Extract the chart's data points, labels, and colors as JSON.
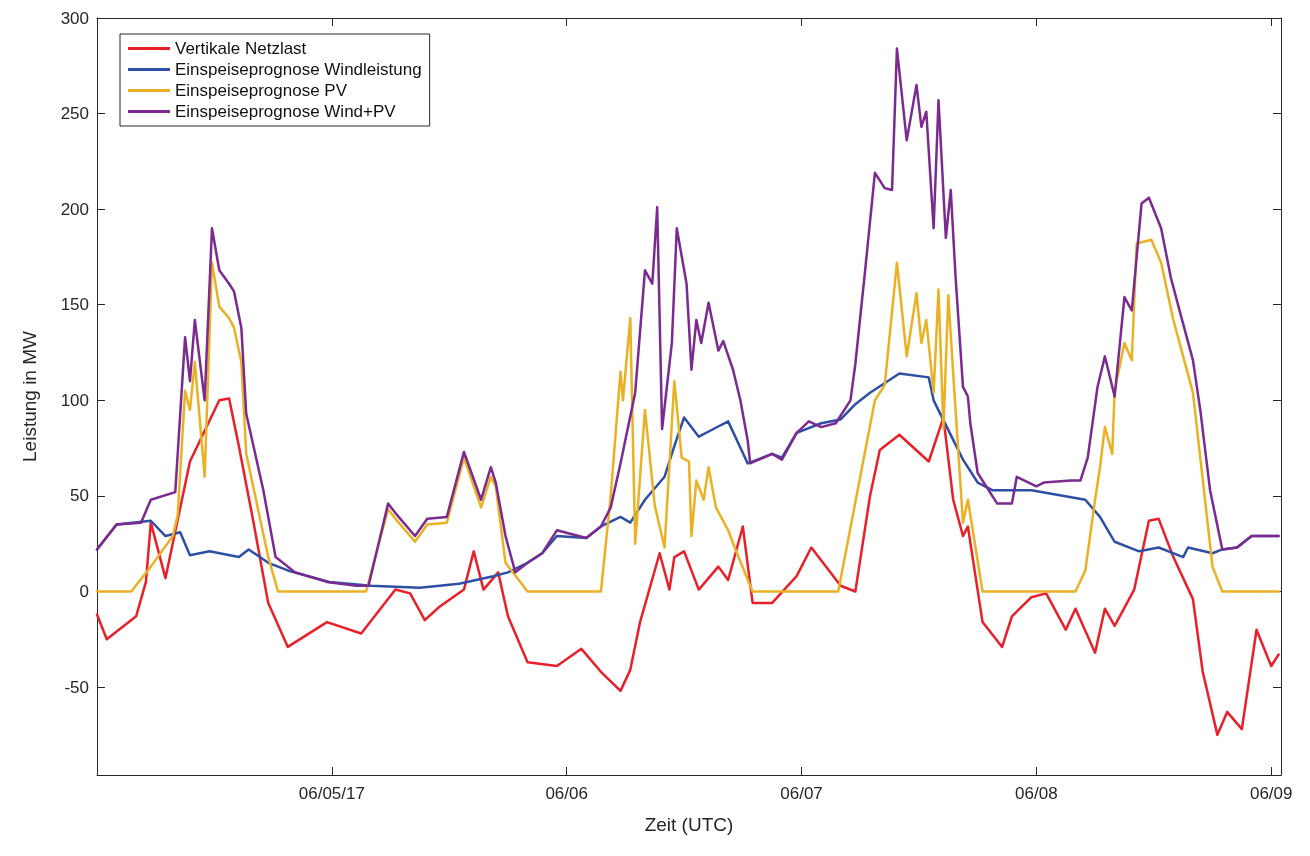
{
  "chart_data": {
    "type": "line",
    "xlabel": "Zeit (UTC)",
    "ylabel": "Leistung in MW",
    "xlim": [
      "--06-04T00:00",
      "--06-09T01:00"
    ],
    "xticks": [
      {
        "value": "--06-05",
        "label": "06/05/17"
      },
      {
        "value": "--06-06",
        "label": "06/06"
      },
      {
        "value": "--06-07",
        "label": "06/07"
      },
      {
        "value": "--06-08",
        "label": "06/08"
      },
      {
        "value": "--06-09",
        "label": "06/09"
      }
    ],
    "ylim": [
      -96,
      300
    ],
    "yticks": [
      -50,
      0,
      50,
      100,
      150,
      200,
      250,
      300
    ],
    "grid": false,
    "legend": "top left",
    "marker": "none",
    "line_style": "solid",
    "series": [
      {
        "name": "Vertikale Netzlast",
        "color": "#e8202a",
        "x": [
          "--06-04T00:00",
          "--06-04T01:00",
          "--06-04T04:00",
          "--06-04T05:00",
          "--06-04T05:30",
          "--06-04T07:00",
          "--06-04T09:30",
          "--06-04T12:30",
          "--06-04T13:30",
          "--06-04T14:30",
          "--06-04T16:00",
          "--06-04T17:30",
          "--06-04T19:30",
          "--06-04T23:30",
          "--06-05T03:00",
          "--06-05T06:30",
          "--06-05T08:00",
          "--06-05T09:30",
          "--06-05T11:00",
          "--06-05T13:30",
          "--06-05T14:30",
          "--06-05T15:30",
          "--06-05T17:00",
          "--06-05T18:00",
          "--06-05T20:00",
          "--06-05T23:00",
          "--06-06T01:30",
          "--06-06T03:30",
          "--06-06T05:30",
          "--06-06T06:30",
          "--06-06T07:30",
          "--06-06T09:30",
          "--06-06T10:30",
          "--06-06T11:00",
          "--06-06T12:00",
          "--06-06T13:30",
          "--06-06T15:30",
          "--06-06T16:30",
          "--06-06T18:00",
          "--06-06T19:00",
          "--06-06T21:00",
          "--06-06T23:30",
          "--06-07T01:00",
          "--06-07T04:00",
          "--06-07T05:30",
          "--06-07T07:00",
          "--06-07T08:00",
          "--06-07T10:00",
          "--06-07T13:00",
          "--06-07T14:30",
          "--06-07T15:30",
          "--06-07T16:30",
          "--06-07T17:00",
          "--06-07T18:30",
          "--06-07T20:30",
          "--06-07T21:30",
          "--06-07T23:30",
          "--06-08T01:00",
          "--06-08T03:00",
          "--06-08T04:00",
          "--06-08T06:00",
          "--06-08T07:00",
          "--06-08T08:00",
          "--06-08T10:00",
          "--06-08T11:30",
          "--06-08T12:30",
          "--06-08T14:00",
          "--06-08T16:00",
          "--06-08T17:00",
          "--06-08T18:30",
          "--06-08T19:30",
          "--06-08T21:00",
          "--06-08T22:30",
          "--06-09T00:00",
          "--06-09T00:45"
        ],
        "values": [
          -12,
          -25,
          -13,
          5,
          36,
          7,
          68,
          100,
          101,
          76,
          36,
          -6,
          -29,
          -16,
          -22,
          1,
          -1,
          -15,
          -8,
          1,
          21,
          1,
          10,
          -13,
          -37,
          -39,
          -30,
          -42,
          -52,
          -41,
          -16,
          20,
          1,
          18,
          21,
          1,
          13,
          6,
          34,
          -6,
          -6,
          8,
          23,
          3,
          0,
          50,
          74,
          82,
          68,
          91,
          48,
          29,
          34,
          -16,
          -29,
          -13,
          -3,
          -1,
          -20,
          -9,
          -32,
          -9,
          -18,
          1,
          37,
          38,
          18,
          -4,
          -42,
          -75,
          -63,
          -72,
          -20,
          -39,
          -33
        ]
      },
      {
        "name": "Einspeiseprognose Windleistung",
        "color": "#2e4fa3",
        "x": [
          "--06-04T00:00",
          "--06-04T02:00",
          "--06-04T05:30",
          "--06-04T07:00",
          "--06-04T08:30",
          "--06-04T09:30",
          "--06-04T11:30",
          "--06-04T14:30",
          "--06-04T15:30",
          "--06-04T17:30",
          "--06-04T19:30",
          "--06-04T23:45",
          "--06-05T04:00",
          "--06-05T09:00",
          "--06-05T13:00",
          "--06-05T16:30",
          "--06-05T18:00",
          "--06-05T20:00",
          "--06-05T21:30",
          "--06-05T23:00",
          "--06-06T02:00",
          "--06-06T03:30",
          "--06-06T05:30",
          "--06-06T06:30",
          "--06-06T08:00",
          "--06-06T10:00",
          "--06-06T11:00",
          "--06-06T12:00",
          "--06-06T13:30",
          "--06-06T15:00",
          "--06-06T16:30",
          "--06-06T18:30",
          "--06-06T21:00",
          "--06-06T22:00",
          "--06-06T23:30",
          "--06-07T02:00",
          "--06-07T04:00",
          "--06-07T05:30",
          "--06-07T07:00",
          "--06-07T10:00",
          "--06-07T13:00",
          "--06-07T13:30",
          "--06-07T16:30",
          "--06-07T18:00",
          "--06-07T19:30",
          "--06-07T23:30",
          "--06-08T05:00",
          "--06-08T06:30",
          "--06-08T08:00",
          "--06-08T10:30",
          "--06-08T12:30",
          "--06-08T15:00",
          "--06-08T15:30",
          "--06-08T18:00",
          "--06-08T19:00",
          "--06-08T20:30",
          "--06-08T22:00",
          "--06-09T00:45"
        ],
        "values": [
          22,
          35,
          37,
          29,
          31,
          19,
          21,
          18,
          22,
          15,
          11,
          5,
          3,
          2,
          4,
          8,
          10,
          15,
          20,
          29,
          28,
          34,
          39,
          36,
          48,
          60,
          76,
          91,
          81,
          85,
          89,
          67,
          72,
          70,
          83,
          88,
          90,
          98,
          104,
          114,
          112,
          100,
          69,
          57,
          53,
          53,
          48,
          39,
          26,
          21,
          23,
          18,
          23,
          20,
          22,
          23,
          29,
          29
        ]
      },
      {
        "name": "Einspeiseprognose PV",
        "color": "#eab124",
        "x": [
          "--06-04T00:00",
          "--06-04T03:30",
          "--06-04T05:30",
          "--06-04T07:45",
          "--06-04T08:15",
          "--06-04T09:00",
          "--06-04T09:30",
          "--06-04T10:00",
          "--06-04T11:00",
          "--06-04T11:45",
          "--06-04T12:30",
          "--06-04T13:30",
          "--06-04T14:00",
          "--06-04T14:45",
          "--06-04T15:15",
          "--06-04T17:30",
          "--06-04T18:30",
          "--06-05T03:30",
          "--06-05T05:45",
          "--06-05T06:30",
          "--06-05T08:30",
          "--06-05T09:45",
          "--06-05T11:45",
          "--06-05T13:30",
          "--06-05T15:15",
          "--06-05T16:15",
          "--06-05T16:45",
          "--06-05T17:45",
          "--06-05T20:00",
          "--06-06T03:30",
          "--06-06T04:30",
          "--06-06T05:30",
          "--06-06T05:45",
          "--06-06T06:30",
          "--06-06T07:00",
          "--06-06T08:00",
          "--06-06T09:00",
          "--06-06T10:00",
          "--06-06T11:00",
          "--06-06T11:45",
          "--06-06T12:30",
          "--06-06T12:45",
          "--06-06T13:15",
          "--06-06T14:00",
          "--06-06T14:30",
          "--06-06T15:15",
          "--06-06T16:30",
          "--06-06T17:15",
          "--06-06T19:00",
          "--06-07T03:45",
          "--06-07T07:30",
          "--06-07T08:30",
          "--06-07T09:45",
          "--06-07T10:45",
          "--06-07T11:45",
          "--06-07T12:15",
          "--06-07T12:45",
          "--06-07T13:30",
          "--06-07T14:00",
          "--06-07T14:30",
          "--06-07T15:00",
          "--06-07T15:30",
          "--06-07T16:30",
          "--06-07T17:00",
          "--06-07T18:30",
          "--06-08T04:00",
          "--06-08T05:00",
          "--06-08T06:00",
          "--06-08T06:30",
          "--06-08T07:00",
          "--06-08T07:45",
          "--06-08T08:00",
          "--06-08T09:00",
          "--06-08T09:45",
          "--06-08T10:15",
          "--06-08T11:45",
          "--06-08T12:45",
          "--06-08T14:00",
          "--06-08T15:00",
          "--06-08T16:00",
          "--06-08T16:45",
          "--06-08T18:00",
          "--06-08T19:00",
          "--06-09T00:45"
        ],
        "values": [
          0,
          0,
          13,
          29,
          40,
          105,
          95,
          120,
          60,
          172,
          149,
          143,
          138,
          120,
          72,
          18,
          0,
          0,
          43,
          38,
          26,
          35,
          36,
          70,
          44,
          60,
          55,
          15,
          0,
          0,
          50,
          115,
          100,
          143,
          25,
          95,
          45,
          23,
          110,
          70,
          68,
          29,
          58,
          48,
          65,
          44,
          32,
          22,
          0,
          0,
          100,
          108,
          172,
          123,
          156,
          130,
          142,
          104,
          158,
          85,
          155,
          114,
          36,
          48,
          0,
          0,
          11,
          48,
          65,
          86,
          72,
          105,
          130,
          121,
          182,
          184,
          172,
          142,
          123,
          104,
          70,
          13,
          0,
          0
        ]
      },
      {
        "name": "Einspeiseprognose Wind+PV",
        "color": "#7b2a90",
        "x": [
          "--06-04T00:00",
          "--06-04T02:00",
          "--06-04T04:30",
          "--06-04T05:30",
          "--06-04T08:00",
          "--06-04T09:00",
          "--06-04T09:30",
          "--06-04T10:00",
          "--06-04T11:00",
          "--06-04T11:45",
          "--06-04T12:30",
          "--06-04T13:30",
          "--06-04T14:00",
          "--06-04T14:45",
          "--06-04T15:15",
          "--06-04T17:00",
          "--06-04T18:15",
          "--06-04T20:15",
          "--06-04T23:30",
          "--06-05T02:30",
          "--06-05T03:45",
          "--06-05T05:45",
          "--06-05T06:30",
          "--06-05T08:30",
          "--06-05T09:45",
          "--06-05T11:45",
          "--06-05T13:30",
          "--06-05T15:15",
          "--06-05T16:15",
          "--06-05T16:45",
          "--06-05T17:45",
          "--06-05T18:45",
          "--06-05T20:00",
          "--06-05T21:30",
          "--06-05T23:00",
          "--06-06T02:00",
          "--06-06T03:30",
          "--06-06T04:30",
          "--06-06T05:30",
          "--06-06T07:00",
          "--06-06T08:00",
          "--06-06T08:45",
          "--06-06T09:15",
          "--06-06T09:45",
          "--06-06T10:45",
          "--06-06T11:15",
          "--06-06T12:15",
          "--06-06T12:45",
          "--06-06T13:15",
          "--06-06T13:45",
          "--06-06T14:30",
          "--06-06T15:30",
          "--06-06T16:00",
          "--06-06T17:00",
          "--06-06T17:45",
          "--06-06T18:30",
          "--06-06T18:45",
          "--06-06T21:00",
          "--06-06T22:00",
          "--06-06T23:30",
          "--06-07T00:45",
          "--06-07T02:00",
          "--06-07T03:30",
          "--06-07T05:00",
          "--06-07T05:30",
          "--06-07T06:30",
          "--06-07T07:30",
          "--06-07T08:30",
          "--06-07T09:15",
          "--06-07T09:45",
          "--06-07T10:45",
          "--06-07T11:45",
          "--06-07T12:15",
          "--06-07T12:45",
          "--06-07T13:30",
          "--06-07T14:00",
          "--06-07T14:45",
          "--06-07T15:15",
          "--06-07T15:45",
          "--06-07T16:30",
          "--06-07T17:00",
          "--06-07T17:15",
          "--06-07T18:00",
          "--06-07T20:00",
          "--06-07T21:30",
          "--06-07T22:00",
          "--06-08T00:00",
          "--06-08T00:45",
          "--06-08T03:30",
          "--06-08T04:30",
          "--06-08T05:15",
          "--06-08T06:15",
          "--06-08T07:00",
          "--06-08T08:00",
          "--06-08T09:00",
          "--06-08T09:45",
          "--06-08T10:45",
          "--06-08T11:30",
          "--06-08T12:45",
          "--06-08T13:45",
          "--06-08T15:00",
          "--06-08T16:00",
          "--06-08T16:45",
          "--06-08T17:45",
          "--06-08T19:00",
          "--06-08T20:30",
          "--06-08T22:00",
          "--06-09T00:45"
        ],
        "values": [
          22,
          35,
          36,
          48,
          52,
          133,
          110,
          142,
          100,
          190,
          168,
          161,
          157,
          138,
          93,
          53,
          18,
          10,
          5,
          3,
          3,
          46,
          41,
          29,
          38,
          39,
          73,
          48,
          65,
          57,
          29,
          10,
          15,
          20,
          32,
          28,
          34,
          44,
          67,
          104,
          168,
          161,
          201,
          85,
          130,
          190,
          161,
          116,
          142,
          130,
          151,
          126,
          131,
          116,
          100,
          79,
          67,
          72,
          69,
          83,
          89,
          86,
          88,
          100,
          119,
          168,
          219,
          211,
          210,
          284,
          236,
          265,
          243,
          251,
          190,
          257,
          185,
          210,
          164,
          107,
          102,
          88,
          62,
          46,
          46,
          60,
          55,
          57,
          58,
          58,
          70,
          107,
          123,
          102,
          154,
          147,
          203,
          206,
          190,
          164,
          140,
          121,
          95,
          53,
          22,
          23,
          29,
          29
        ]
      }
    ]
  }
}
